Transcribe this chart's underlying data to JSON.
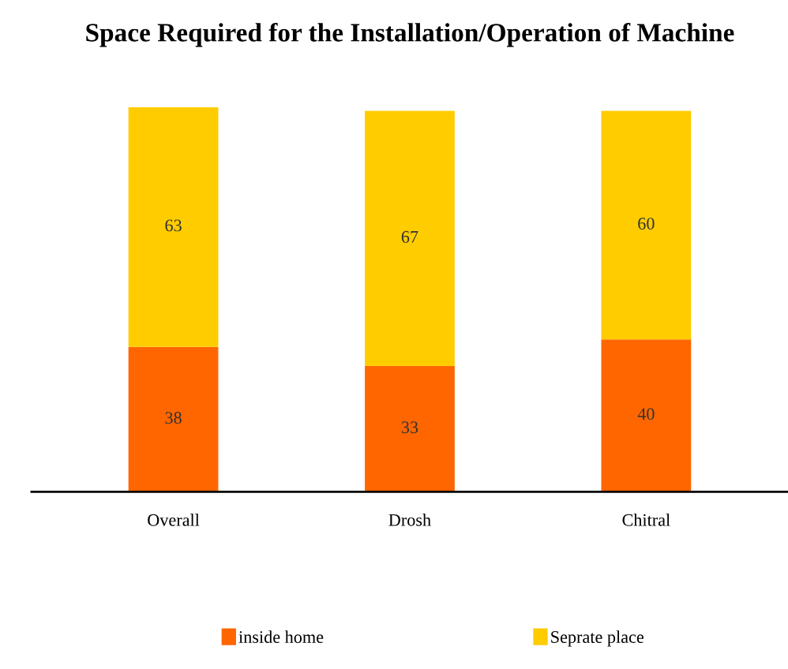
{
  "chart_data": {
    "type": "bar",
    "title": "Space Required for the Installation/Operation of Machine",
    "categories": [
      "Overall",
      "Drosh",
      "Chitral"
    ],
    "stacked": true,
    "data_labels": true,
    "legend": "bottom",
    "series": [
      {
        "name": "inside home",
        "color": "#ff6600",
        "values": [
          38,
          33,
          40
        ]
      },
      {
        "name": "Seprate place",
        "color": "#ffcc00",
        "values": [
          63,
          67,
          60
        ]
      }
    ]
  }
}
